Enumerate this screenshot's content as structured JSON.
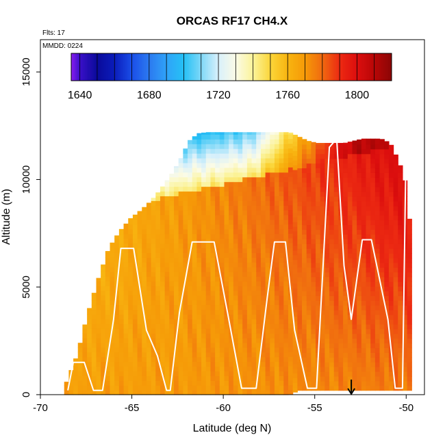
{
  "chart_data": {
    "type": "heatmap",
    "title": "ORCAS RF17 CH4.X",
    "xlabel": "Latitude (deg N)",
    "ylabel": "Altitude (m)",
    "xlim": [
      -70,
      -49
    ],
    "ylim": [
      0,
      16500
    ],
    "xticks": [
      -70,
      -65,
      -60,
      -55,
      -50
    ],
    "yticks": [
      0,
      5000,
      10000,
      15000
    ],
    "flights_text": "Flts: 17",
    "mmdd_text": "MMDD: 0224",
    "colorbar": {
      "range": [
        1635,
        1820
      ],
      "ticks": [
        1640,
        1680,
        1720,
        1760,
        1800
      ],
      "stops": [
        {
          "v": 1635,
          "c": "#8a1df0"
        },
        {
          "v": 1640,
          "c": "#3a10c8"
        },
        {
          "v": 1650,
          "c": "#0a0a9a"
        },
        {
          "v": 1660,
          "c": "#0b1dbb"
        },
        {
          "v": 1670,
          "c": "#1a4ee8"
        },
        {
          "v": 1680,
          "c": "#2c7af0"
        },
        {
          "v": 1690,
          "c": "#2fa2f8"
        },
        {
          "v": 1700,
          "c": "#25c0f5"
        },
        {
          "v": 1710,
          "c": "#7ed8f8"
        },
        {
          "v": 1720,
          "c": "#d8f0fb"
        },
        {
          "v": 1730,
          "c": "#fbfbe6"
        },
        {
          "v": 1740,
          "c": "#fbf39a"
        },
        {
          "v": 1750,
          "c": "#fbd63a"
        },
        {
          "v": 1760,
          "c": "#f8b410"
        },
        {
          "v": 1770,
          "c": "#f69a08"
        },
        {
          "v": 1780,
          "c": "#f06a10"
        },
        {
          "v": 1790,
          "c": "#ec2a12"
        },
        {
          "v": 1800,
          "c": "#dc0e0e"
        },
        {
          "v": 1810,
          "c": "#b80707"
        },
        {
          "v": 1820,
          "c": "#8a0505"
        }
      ]
    },
    "domain_outline": {
      "lat": [
        -68.7,
        -68.1,
        -67.6,
        -67.0,
        -66.4,
        -65.8,
        -65.2,
        -64.6,
        -64.1,
        -63.6,
        -63.0,
        -62.5,
        -62.0,
        -61.5,
        -61.0,
        -60.5,
        -60.0,
        -59.5,
        -59.0,
        -58.5,
        -58.0,
        -57.5,
        -57.0,
        -56.5,
        -56.0,
        -55.5,
        -55.0,
        -54.5,
        -54.0,
        -53.5,
        -53.0,
        -52.5,
        -52.0,
        -51.5,
        -51.0,
        -50.5,
        -50.0,
        -49.8
      ],
      "top": [
        600,
        1900,
        3600,
        5300,
        6800,
        7600,
        8200,
        8600,
        9000,
        9500,
        10200,
        10900,
        11800,
        12150,
        12200,
        12200,
        12200,
        12200,
        12200,
        12200,
        12200,
        12200,
        12200,
        12200,
        12000,
        11800,
        11700,
        11700,
        11700,
        11700,
        11800,
        11900,
        11900,
        11900,
        11700,
        10800,
        9400,
        4500
      ],
      "bottom": [
        0,
        0,
        0,
        0,
        0,
        0,
        0,
        0,
        0,
        0,
        0,
        0,
        0,
        0,
        0,
        0,
        0,
        0,
        0,
        0,
        0,
        0,
        0,
        0,
        200,
        200,
        200,
        200,
        200,
        200,
        200,
        200,
        200,
        200,
        200,
        200,
        200,
        200
      ]
    },
    "field_model": {
      "tropopause_m": 8000,
      "tropopause_slope_m_per_deg": 380,
      "surface_value": 1768,
      "midlevel_north_value": 1798,
      "upper_south_value": 1690,
      "upper_north_value": 1810
    },
    "flight_track": {
      "lat": [
        -68.5,
        -68.2,
        -67.6,
        -67.1,
        -66.6,
        -66.0,
        -65.6,
        -64.9,
        -64.2,
        -63.6,
        -63.1,
        -62.9,
        -62.4,
        -61.7,
        -61.2,
        -60.5,
        -59.7,
        -59.0,
        -58.2,
        -57.6,
        -57.2,
        -56.6,
        -56.1,
        -55.4,
        -54.9,
        -54.2,
        -53.8,
        -53.4,
        -53.0,
        -52.4,
        -51.9,
        -51.0,
        -50.6,
        -50.2,
        -50.0
      ],
      "alt": [
        200,
        1500,
        1500,
        200,
        200,
        3500,
        6800,
        6800,
        3000,
        1800,
        200,
        200,
        3800,
        7100,
        7100,
        7100,
        3500,
        300,
        300,
        4500,
        7100,
        7100,
        3000,
        300,
        300,
        11500,
        11900,
        6000,
        3500,
        7200,
        7200,
        3500,
        300,
        300,
        11900
      ]
    },
    "arrow_lat": -53,
    "arrow_alt_range": [
      700,
      0
    ]
  }
}
